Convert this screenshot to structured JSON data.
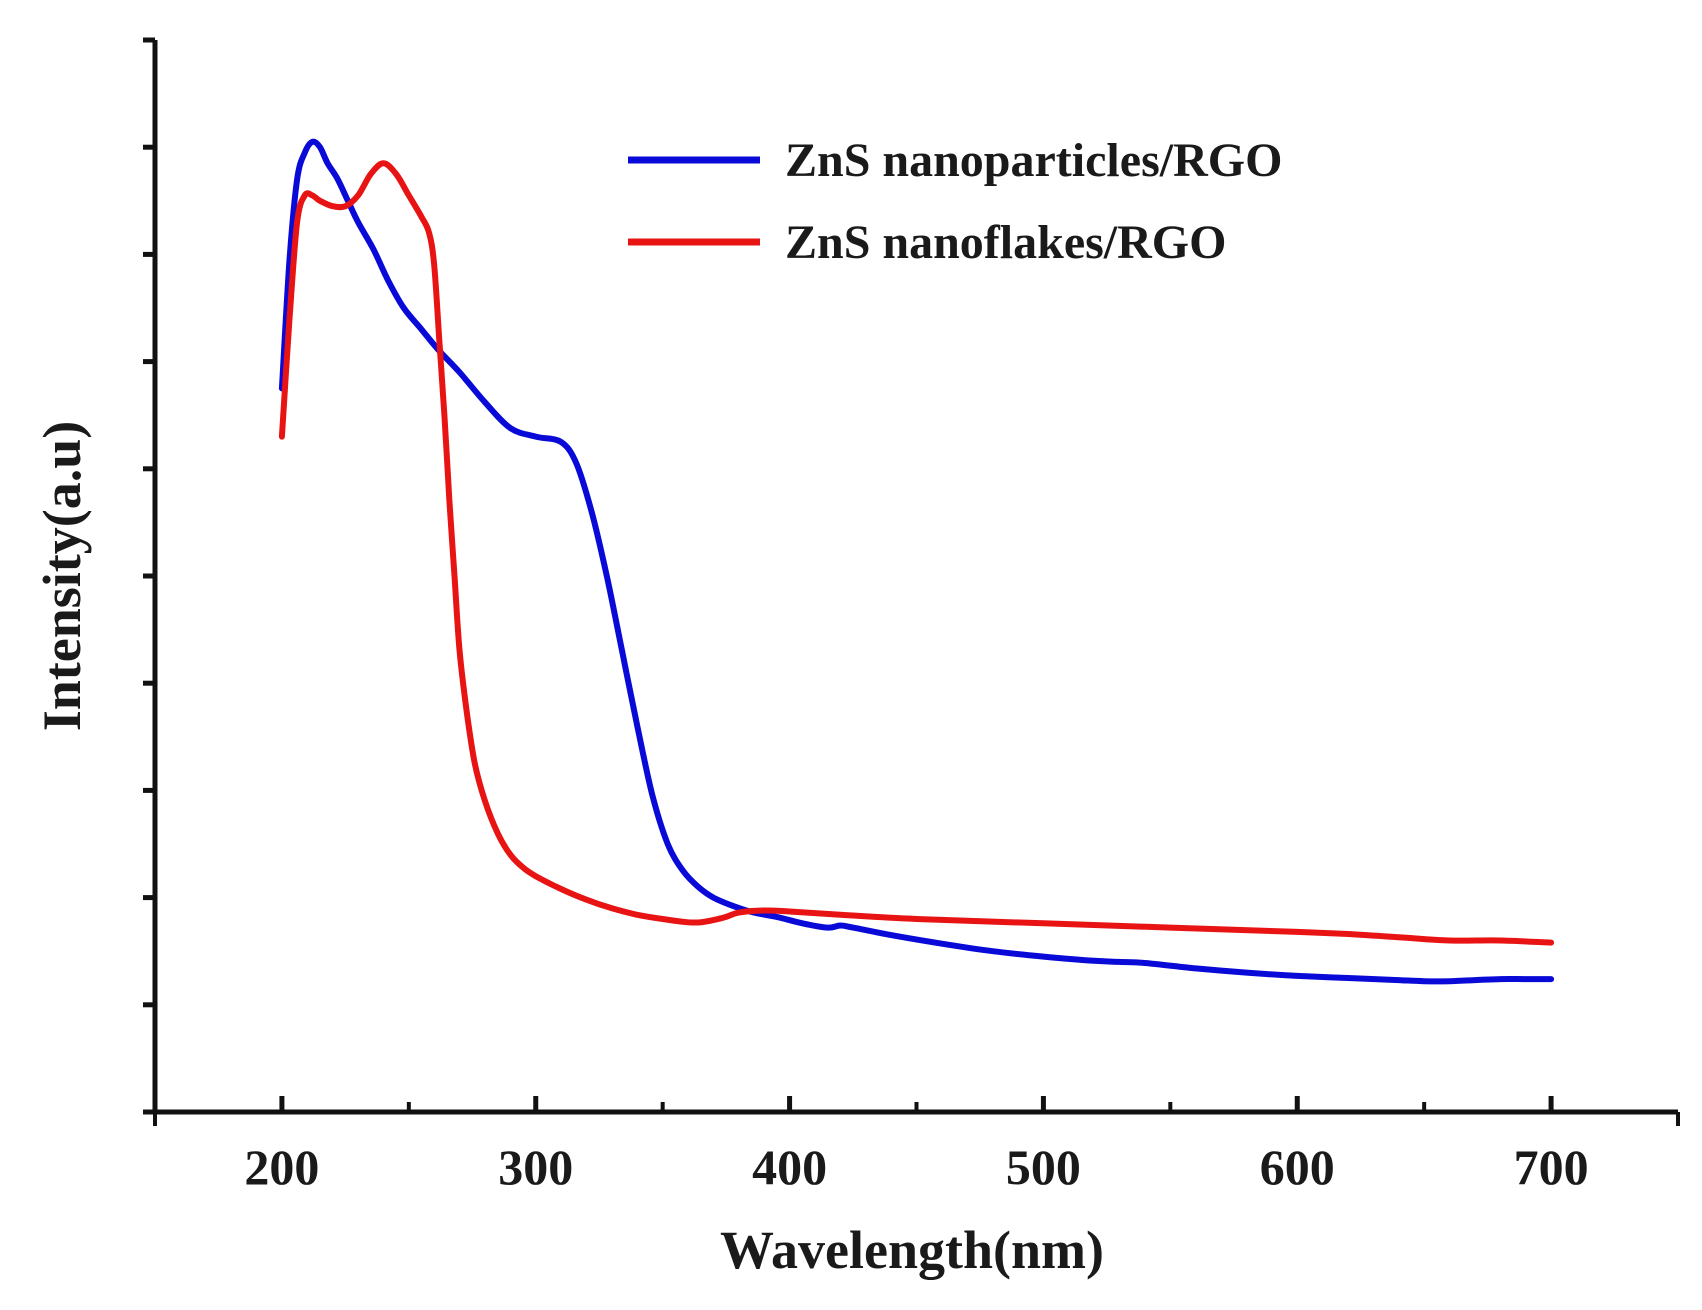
{
  "chart_data": {
    "type": "line",
    "title": "",
    "xlabel": "Wavelength(nm)",
    "ylabel": "Intensity(a.u)",
    "xlim": [
      150,
      750
    ],
    "ylim": [
      0,
      10
    ],
    "x_ticks": [
      200,
      300,
      400,
      500,
      600,
      700
    ],
    "x_minor_ticks": [
      250,
      350,
      450,
      550,
      650
    ],
    "y_ticks": [
      1,
      2,
      3,
      4,
      5,
      6,
      7,
      8,
      9
    ],
    "y_tick_labels_shown": false,
    "grid": false,
    "legend_position": "top-right",
    "series": [
      {
        "name": "ZnS nanoparticles/RGO",
        "color": "#0a0ad8",
        "x": [
          200,
          203,
          206,
          209,
          212,
          215,
          218,
          222,
          226,
          230,
          236,
          242,
          248,
          255,
          262,
          270,
          280,
          290,
          300,
          310,
          316,
          322,
          328,
          334,
          340,
          346,
          352,
          358,
          364,
          370,
          378,
          386,
          395,
          405,
          415,
          420,
          425,
          440,
          460,
          480,
          500,
          520,
          530,
          540,
          560,
          580,
          600,
          620,
          640,
          650,
          660,
          670,
          680,
          690,
          700
        ],
        "y": [
          6.75,
          7.95,
          8.7,
          8.95,
          9.05,
          9.0,
          8.85,
          8.7,
          8.5,
          8.3,
          8.05,
          7.75,
          7.5,
          7.3,
          7.1,
          6.9,
          6.62,
          6.38,
          6.3,
          6.25,
          6.05,
          5.6,
          5.0,
          4.3,
          3.6,
          2.95,
          2.5,
          2.25,
          2.1,
          2.0,
          1.92,
          1.86,
          1.82,
          1.76,
          1.72,
          1.74,
          1.72,
          1.65,
          1.57,
          1.5,
          1.45,
          1.41,
          1.4,
          1.39,
          1.34,
          1.3,
          1.27,
          1.25,
          1.23,
          1.22,
          1.22,
          1.23,
          1.24,
          1.24,
          1.24
        ]
      },
      {
        "name": "ZnS nanoflakes/RGO",
        "color": "#e81414",
        "x": [
          200,
          203,
          206,
          209,
          212,
          215,
          220,
          225,
          230,
          235,
          240,
          245,
          250,
          255,
          258,
          260,
          262,
          264,
          266,
          268,
          270,
          273,
          276,
          280,
          285,
          290,
          295,
          300,
          310,
          320,
          330,
          340,
          350,
          360,
          365,
          370,
          375,
          380,
          390,
          400,
          420,
          450,
          500,
          550,
          600,
          620,
          640,
          660,
          680,
          700
        ],
        "y": [
          6.3,
          7.4,
          8.3,
          8.55,
          8.55,
          8.5,
          8.45,
          8.45,
          8.55,
          8.75,
          8.85,
          8.75,
          8.55,
          8.35,
          8.2,
          7.9,
          7.2,
          6.5,
          5.7,
          5.0,
          4.3,
          3.7,
          3.25,
          2.9,
          2.6,
          2.4,
          2.28,
          2.2,
          2.08,
          1.98,
          1.9,
          1.84,
          1.8,
          1.77,
          1.77,
          1.79,
          1.82,
          1.86,
          1.88,
          1.87,
          1.84,
          1.8,
          1.76,
          1.72,
          1.68,
          1.66,
          1.63,
          1.6,
          1.6,
          1.58
        ]
      }
    ]
  }
}
